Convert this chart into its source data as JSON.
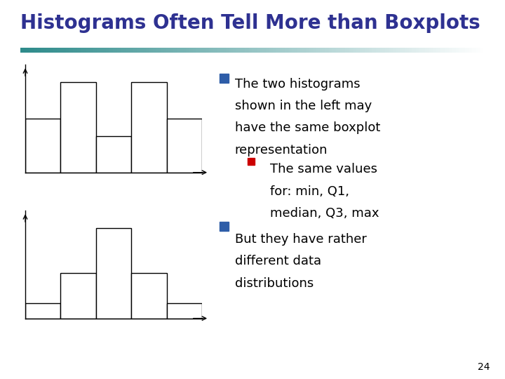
{
  "title": "Histograms Often Tell More than Boxplots",
  "title_color": "#2E3191",
  "title_fontsize": 20,
  "separator_color_left": "#2E8B8B",
  "separator_color_right": "#DDDDDD",
  "bg_color": "#FFFFFF",
  "hist1_heights": [
    3,
    5,
    2,
    5,
    3
  ],
  "hist2_heights": [
    1,
    3,
    6,
    3,
    1
  ],
  "hist_edge_color": "#000000",
  "hist_face_color": "#FFFFFF",
  "bullet1_color": "#2E5DA8",
  "bullet_sub_color": "#CC0000",
  "bullet2_color": "#2E5DA8",
  "text_color": "#000000",
  "text_fontsize": 13,
  "slide_number": "24",
  "bullet1_text_lines": [
    "The two histograms",
    "shown in the left may",
    "have the same boxplot",
    "representation"
  ],
  "sub_bullet_text_lines": [
    "The same values",
    "for: min, Q1,",
    "median, Q3, max"
  ],
  "bullet2_text_lines": [
    "But they have rather",
    "different data",
    "distributions"
  ]
}
